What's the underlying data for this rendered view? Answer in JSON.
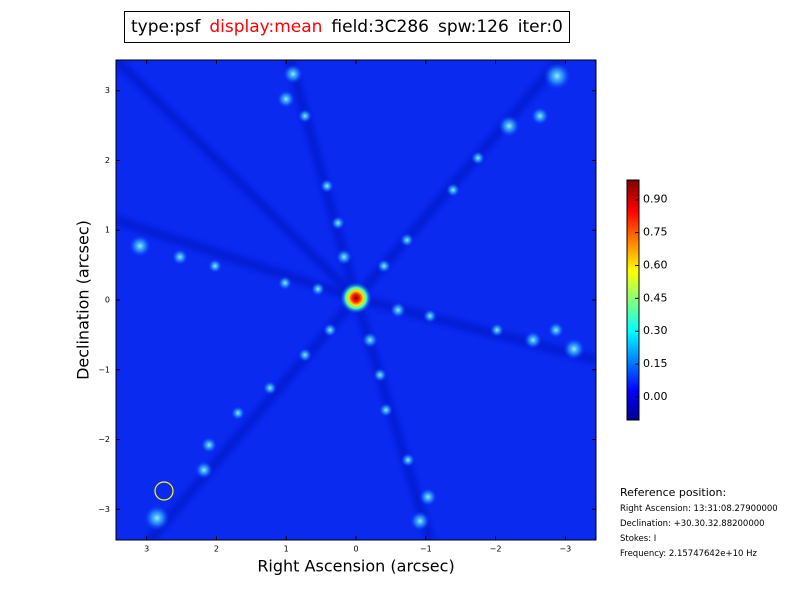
{
  "chart_data": {
    "type": "image",
    "title_parts": [
      "type:psf",
      "display:mean",
      "field:3C286",
      "spw:126",
      "iter:0"
    ],
    "title_colors": [
      "#000000",
      "#ff0000",
      "#000000",
      "#000000",
      "#000000"
    ],
    "xlabel": "Right Ascension (arcsec)",
    "ylabel": "Declination (arcsec)",
    "xlim": [
      3.44,
      -3.44
    ],
    "xticks": [
      3,
      2,
      1,
      0,
      {
        "value": -1,
        "label": "−1"
      },
      {
        "value": -2,
        "label": "−2"
      },
      {
        "value": -3,
        "label": "−3"
      }
    ],
    "ylim": [
      -3.44,
      3.44
    ],
    "yticks": [
      {
        "value": -3,
        "label": "−3"
      },
      {
        "value": -2,
        "label": "−2"
      },
      {
        "value": -1,
        "label": "−1"
      },
      0,
      1,
      2,
      3
    ],
    "colorbar": {
      "clim": [
        -0.105,
        0.99
      ],
      "ticks": [
        {
          "value": 0,
          "label": "0.00"
        },
        {
          "value": 0.15,
          "label": "0.15"
        },
        {
          "value": 0.3,
          "label": "0.30"
        },
        {
          "value": 0.45,
          "label": "0.45"
        },
        {
          "value": 0.6,
          "label": "0.60"
        },
        {
          "value": 0.75,
          "label": "0.75"
        },
        {
          "value": 0.9,
          "label": "0.90"
        }
      ]
    },
    "reference": {
      "title": "Reference position:",
      "lines": [
        "Right Ascension: 13:31:08.27900000",
        "Declination: +30.30.32.88200000",
        "Stokes: I",
        "Frequency: 2.15747642e+10 Hz"
      ]
    }
  }
}
